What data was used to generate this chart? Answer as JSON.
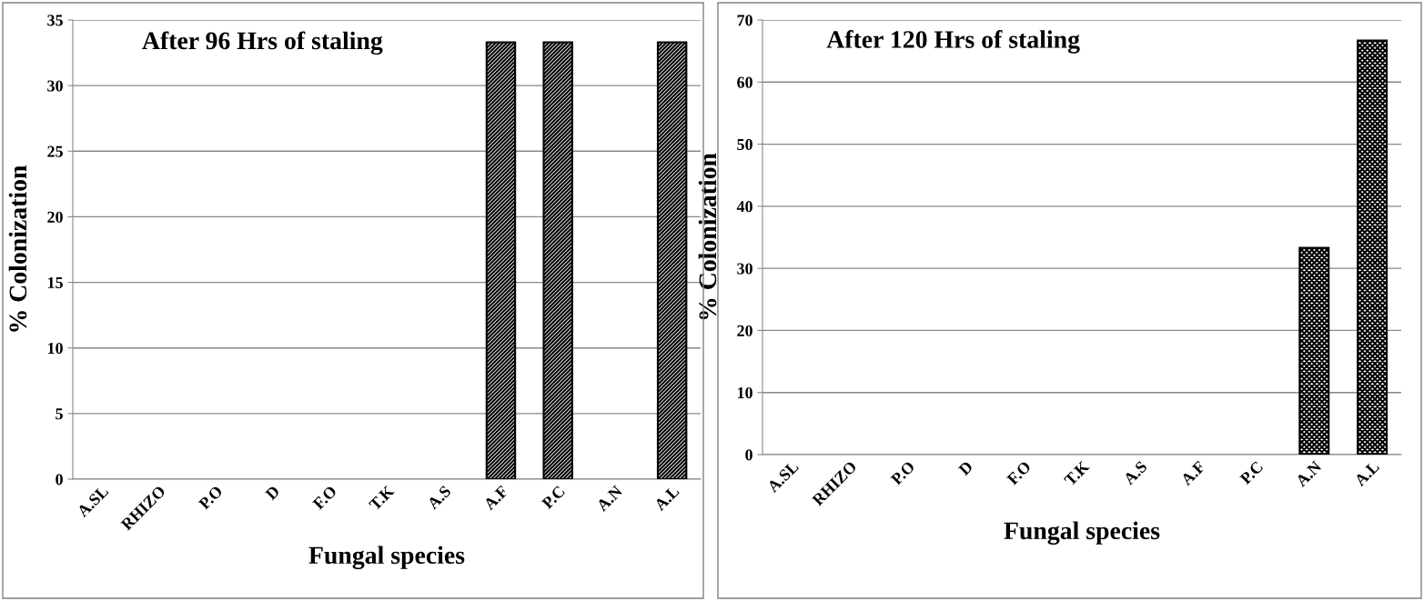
{
  "chart_data": [
    {
      "type": "bar",
      "title": "After 96 Hrs of staling",
      "xlabel": "Fungal species",
      "ylabel": "% Colonization",
      "categories": [
        "A.SL",
        "RHIZO",
        "P.O",
        "D",
        "F.O",
        "T.K",
        "A.S",
        "A.F",
        "P.C",
        "A.N",
        "A.L"
      ],
      "values": [
        0,
        0,
        0,
        0,
        0,
        0,
        0,
        33.3,
        33.3,
        0,
        33.3
      ],
      "color": "#000000",
      "ylim": [
        0,
        35
      ],
      "yticks": [
        0,
        5,
        10,
        15,
        20,
        25,
        30,
        35
      ],
      "grid": "y",
      "legend": false
    },
    {
      "type": "bar",
      "title": "After 120 Hrs of staling",
      "xlabel": "Fungal species",
      "ylabel": "% Colonization",
      "categories": [
        "A.SL",
        "RHIZO",
        "P.O",
        "D",
        "F.O",
        "T.K",
        "A.S",
        "A.F",
        "P.C",
        "A.N",
        "A.L"
      ],
      "values": [
        0,
        0,
        0,
        0,
        0,
        0,
        0,
        0,
        0,
        33.3,
        66.7
      ],
      "color": "#000000",
      "ylim": [
        0,
        70
      ],
      "yticks": [
        0,
        10,
        20,
        30,
        40,
        50,
        60,
        70
      ],
      "grid": "y",
      "legend": false
    }
  ]
}
